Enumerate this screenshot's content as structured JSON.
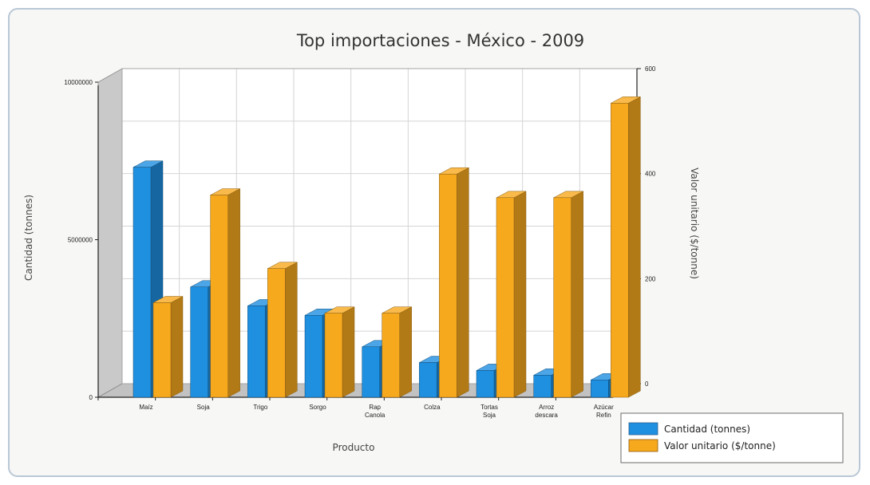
{
  "chart_data": {
    "type": "bar",
    "title": "Top importaciones - México - 2009",
    "xlabel": "Producto",
    "ylabel": "Cantidad (tonnes)",
    "y2label": "Valor unitario  ($/tonne)",
    "categories": [
      [
        "Maíz"
      ],
      [
        "Soja"
      ],
      [
        "Trigo"
      ],
      [
        "Sorgo"
      ],
      [
        "Rap",
        "Canola"
      ],
      [
        "Colza"
      ],
      [
        "Tortas",
        "Soja"
      ],
      [
        "Arroz",
        "descara"
      ],
      [
        "Azúcar",
        "Refin"
      ]
    ],
    "ylim": [
      0,
      10000000
    ],
    "y_ticks": [
      "0",
      "5000000",
      "10000000"
    ],
    "y2lim": [
      0,
      600
    ],
    "y2_ticks": [
      "0",
      "200",
      "400",
      "600"
    ],
    "grid": true,
    "legend_position": "bottom-right",
    "series": [
      {
        "name": "Cantidad (tonnes)",
        "axis": "left",
        "color": "#1f8fe0",
        "values": [
          7300000,
          3500000,
          2900000,
          2600000,
          1600000,
          1100000,
          850000,
          700000,
          550000
        ]
      },
      {
        "name": "Valor unitario  ($/tonne)",
        "axis": "right",
        "color": "#f7a91e",
        "values": [
          180,
          385,
          245,
          160,
          160,
          425,
          380,
          380,
          560
        ]
      }
    ]
  }
}
